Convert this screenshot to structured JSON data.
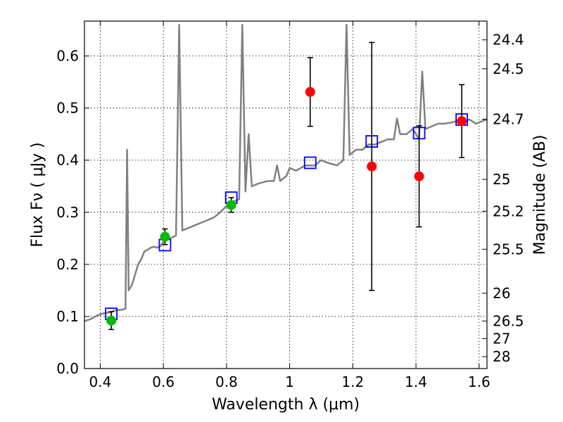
{
  "chart_data": {
    "type": "scatter",
    "xlim": [
      0.35,
      1.625
    ],
    "ylim": [
      0.0,
      0.667
    ],
    "x_ticks": [
      0.4,
      0.6,
      0.8,
      1.0,
      1.2,
      1.4,
      1.6
    ],
    "x_tick_labels": [
      "0.4",
      "0.6",
      "0.8",
      "1",
      "1.2",
      "1.4",
      "1.6"
    ],
    "y_ticks": [
      0.0,
      0.1,
      0.2,
      0.3,
      0.4,
      0.5,
      0.6
    ],
    "y_tick_labels": [
      "0.0",
      "0.1",
      "0.2",
      "0.3",
      "0.4",
      "0.5",
      "0.6"
    ],
    "xlabel": "Wavelength  λ (μm)",
    "ylabel": "Flux  Fν ( μJy )",
    "ylabel_right": "Magnitude (AB)",
    "right_axis": {
      "scale": "AB magnitude",
      "ticks": [
        {
          "mag": 24.4,
          "label": "24.4"
        },
        {
          "mag": 24.5,
          "label": "24.5"
        },
        {
          "mag": 24.7,
          "label": "24.7"
        },
        {
          "mag": 25.0,
          "label": "25"
        },
        {
          "mag": 25.2,
          "label": "25.2"
        },
        {
          "mag": 25.5,
          "label": "25.5"
        },
        {
          "mag": 26.0,
          "label": "26"
        },
        {
          "mag": 26.5,
          "label": "26.5"
        },
        {
          "mag": 27.0,
          "label": "27"
        },
        {
          "mag": 28.0,
          "label": "28"
        }
      ]
    },
    "grid": true,
    "colors": {
      "model": "#808080",
      "model_photometry": "#0000ff",
      "detections": "#00bb00",
      "near_ir": "#ff0000",
      "errorbar": "#000000"
    },
    "series": [
      {
        "style": "line",
        "points": [
          [
            0.35,
            0.091
          ],
          [
            0.37,
            0.095
          ],
          [
            0.39,
            0.102
          ],
          [
            0.41,
            0.106
          ],
          [
            0.43,
            0.108
          ],
          [
            0.45,
            0.112
          ],
          [
            0.47,
            0.113
          ],
          [
            0.48,
            0.115
          ],
          [
            0.485,
            0.42
          ],
          [
            0.49,
            0.15
          ],
          [
            0.5,
            0.16
          ],
          [
            0.51,
            0.18
          ],
          [
            0.52,
            0.2
          ],
          [
            0.53,
            0.21
          ],
          [
            0.54,
            0.225
          ],
          [
            0.55,
            0.228
          ],
          [
            0.56,
            0.232
          ],
          [
            0.57,
            0.234
          ],
          [
            0.58,
            0.232
          ],
          [
            0.59,
            0.235
          ],
          [
            0.6,
            0.243
          ],
          [
            0.62,
            0.25
          ],
          [
            0.64,
            0.255
          ],
          [
            0.65,
            0.66
          ],
          [
            0.66,
            0.265
          ],
          [
            0.68,
            0.27
          ],
          [
            0.7,
            0.275
          ],
          [
            0.72,
            0.28
          ],
          [
            0.74,
            0.285
          ],
          [
            0.76,
            0.29
          ],
          [
            0.78,
            0.3
          ],
          [
            0.8,
            0.312
          ],
          [
            0.82,
            0.32
          ],
          [
            0.84,
            0.325
          ],
          [
            0.85,
            0.66
          ],
          [
            0.86,
            0.34
          ],
          [
            0.87,
            0.45
          ],
          [
            0.88,
            0.35
          ],
          [
            0.9,
            0.355
          ],
          [
            0.93,
            0.36
          ],
          [
            0.95,
            0.36
          ],
          [
            0.96,
            0.39
          ],
          [
            0.97,
            0.36
          ],
          [
            0.99,
            0.37
          ],
          [
            1.0,
            0.385
          ],
          [
            1.02,
            0.38
          ],
          [
            1.05,
            0.39
          ],
          [
            1.08,
            0.39
          ],
          [
            1.1,
            0.4
          ],
          [
            1.12,
            0.395
          ],
          [
            1.15,
            0.39
          ],
          [
            1.17,
            0.4
          ],
          [
            1.18,
            0.66
          ],
          [
            1.19,
            0.41
          ],
          [
            1.21,
            0.42
          ],
          [
            1.23,
            0.42
          ],
          [
            1.25,
            0.43
          ],
          [
            1.27,
            0.43
          ],
          [
            1.29,
            0.435
          ],
          [
            1.31,
            0.44
          ],
          [
            1.33,
            0.44
          ],
          [
            1.34,
            0.48
          ],
          [
            1.35,
            0.45
          ],
          [
            1.37,
            0.45
          ],
          [
            1.39,
            0.46
          ],
          [
            1.41,
            0.44
          ],
          [
            1.42,
            0.57
          ],
          [
            1.43,
            0.46
          ],
          [
            1.45,
            0.465
          ],
          [
            1.47,
            0.47
          ],
          [
            1.49,
            0.47
          ],
          [
            1.51,
            0.472
          ],
          [
            1.53,
            0.475
          ],
          [
            1.55,
            0.475
          ],
          [
            1.57,
            0.478
          ],
          [
            1.59,
            0.47
          ],
          [
            1.61,
            0.475
          ],
          [
            1.625,
            0.478
          ]
        ]
      },
      {
        "style": "open-square",
        "points": [
          [
            0.435,
            0.105
          ],
          [
            0.605,
            0.237
          ],
          [
            0.815,
            0.328
          ],
          [
            1.065,
            0.395
          ],
          [
            1.26,
            0.436
          ],
          [
            1.41,
            0.452
          ],
          [
            1.545,
            0.478
          ]
        ]
      },
      {
        "style": "filled-circle-errorbar",
        "points": [
          {
            "x": 0.435,
            "y": 0.092,
            "err": 0.017
          },
          {
            "x": 0.605,
            "y": 0.253,
            "err": 0.015
          },
          {
            "x": 0.815,
            "y": 0.314,
            "err": 0.014
          }
        ]
      },
      {
        "style": "filled-circle-errorbar",
        "points": [
          {
            "x": 1.065,
            "y": 0.531,
            "err": 0.066
          },
          {
            "x": 1.26,
            "y": 0.388,
            "err": 0.238
          },
          {
            "x": 1.41,
            "y": 0.369,
            "err": 0.097
          },
          {
            "x": 1.545,
            "y": 0.475,
            "err": 0.07
          }
        ]
      }
    ]
  }
}
